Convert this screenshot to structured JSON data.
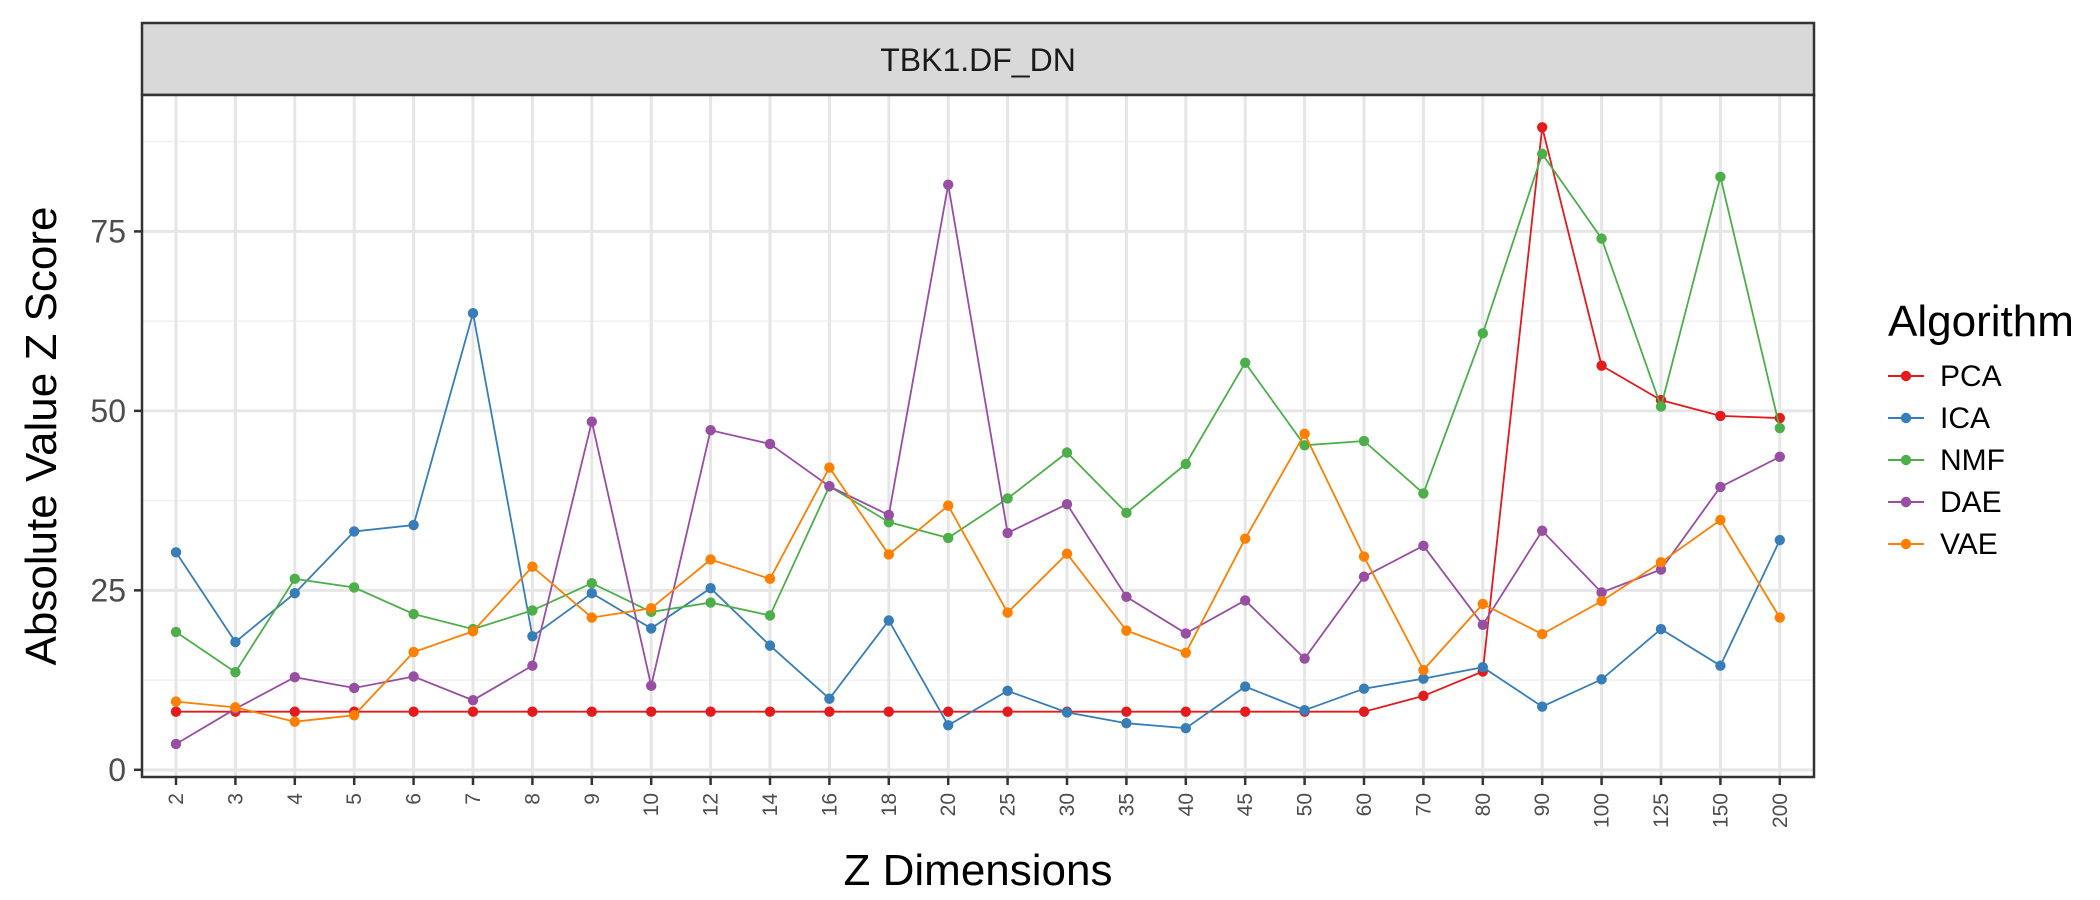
{
  "chart_data": {
    "type": "line",
    "facet_title": "TBK1.DF_DN",
    "xlabel": "Z Dimensions",
    "ylabel": "Absolute Value Z Score",
    "x": [
      "2",
      "3",
      "4",
      "5",
      "6",
      "7",
      "8",
      "9",
      "10",
      "12",
      "14",
      "16",
      "18",
      "20",
      "25",
      "30",
      "35",
      "40",
      "45",
      "50",
      "60",
      "70",
      "80",
      "90",
      "100",
      "125",
      "150",
      "200"
    ],
    "ylim": [
      -1,
      94
    ],
    "yticks": [
      0,
      25,
      50,
      75
    ],
    "grid": true,
    "legend": {
      "title": "Algorithm",
      "position": "right"
    },
    "series": [
      {
        "name": "PCA",
        "color": "#e41a1c",
        "values": [
          8.1,
          8.1,
          8.1,
          8.1,
          8.1,
          8.1,
          8.1,
          8.1,
          8.1,
          8.1,
          8.1,
          8.1,
          8.1,
          8.1,
          8.1,
          8.1,
          8.1,
          8.1,
          8.1,
          8.1,
          8.1,
          10.3,
          13.7,
          89.5,
          56.3,
          51.5,
          49.3,
          49.0
        ]
      },
      {
        "name": "ICA",
        "color": "#377eb8",
        "values": [
          30.3,
          17.8,
          24.6,
          33.2,
          34.1,
          63.6,
          18.6,
          24.6,
          19.7,
          25.3,
          17.3,
          9.9,
          20.8,
          6.2,
          11.0,
          8.0,
          6.5,
          5.8,
          11.6,
          8.3,
          11.3,
          12.7,
          14.3,
          8.8,
          12.6,
          19.6,
          14.5,
          32.0
        ]
      },
      {
        "name": "NMF",
        "color": "#4daf4a",
        "values": [
          19.2,
          13.6,
          26.6,
          25.4,
          21.7,
          19.6,
          22.2,
          26.0,
          22.0,
          23.3,
          21.5,
          39.5,
          34.5,
          32.3,
          37.8,
          44.2,
          35.8,
          42.6,
          56.7,
          45.2,
          45.8,
          38.5,
          60.8,
          85.8,
          74.0,
          50.6,
          82.6,
          47.6
        ]
      },
      {
        "name": "DAE",
        "color": "#984ea3",
        "values": [
          3.6,
          8.5,
          12.9,
          11.4,
          13.0,
          9.7,
          14.5,
          48.5,
          11.7,
          47.3,
          45.4,
          39.5,
          35.5,
          81.5,
          33.0,
          37.0,
          24.1,
          19.0,
          23.6,
          15.5,
          26.9,
          31.2,
          20.2,
          33.3,
          24.7,
          27.9,
          39.4,
          43.6
        ]
      },
      {
        "name": "VAE",
        "color": "#ff7f00",
        "values": [
          9.5,
          8.7,
          6.7,
          7.6,
          16.4,
          19.3,
          28.3,
          21.2,
          22.5,
          29.3,
          26.6,
          42.1,
          30.0,
          36.8,
          21.9,
          30.1,
          19.4,
          16.3,
          32.2,
          46.8,
          29.7,
          13.9,
          23.1,
          18.9,
          23.5,
          28.9,
          34.8,
          21.2
        ]
      }
    ]
  }
}
